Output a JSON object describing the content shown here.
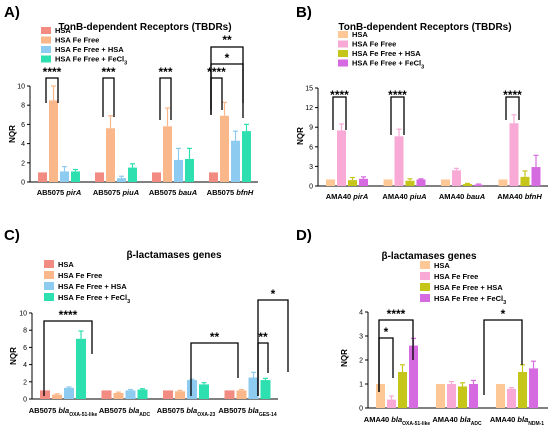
{
  "chart_data": [
    {
      "type": "bar",
      "panel": "A)",
      "title": "TonB-dependent Receptors (TBDRs)",
      "ylabel": "NQR",
      "ylim": [
        0,
        10
      ],
      "yticks": [
        "0",
        "2",
        "4",
        "6",
        "8",
        "10"
      ],
      "categories": [
        {
          "label": "AB5075 ",
          "gene": "pirA"
        },
        {
          "label": "AB5075 ",
          "gene": "piuA"
        },
        {
          "label": "AB5075 ",
          "gene": "bauA"
        },
        {
          "label": "AB5075 ",
          "gene": "bfnH"
        }
      ],
      "series": [
        {
          "name": "HSA",
          "color": "#f28b82",
          "values": [
            1,
            1,
            1,
            1
          ],
          "errors": [
            0,
            0,
            0,
            0
          ]
        },
        {
          "name": "HSA Fe Free",
          "color": "#f9b78a",
          "values": [
            8.5,
            5.6,
            5.8,
            6.9
          ],
          "errors": [
            1.5,
            1.3,
            1.9,
            1.4
          ]
        },
        {
          "name": "HSA Fe Free + HSA",
          "color": "#8ecbf0",
          "values": [
            1.1,
            0.4,
            2.3,
            4.3
          ],
          "errors": [
            0.5,
            0.2,
            1.2,
            1.0
          ]
        },
        {
          "name": "HSA Fe Free + FeCl3",
          "name_base": "HSA Fe Free + FeCl",
          "name_sub": "3",
          "color": "#2ee0b0",
          "values": [
            1.1,
            1.5,
            2.4,
            5.3
          ],
          "errors": [
            0.2,
            0.4,
            1.1,
            0.7
          ]
        }
      ],
      "significance": [
        "****",
        "***",
        "***",
        "****",
        "*",
        "**"
      ]
    },
    {
      "type": "bar",
      "panel": "B)",
      "title": "TonB-dependent Receptors (TBDRs)",
      "ylabel": "NQR",
      "ylim": [
        0,
        15
      ],
      "yticks": [
        "0",
        "3",
        "6",
        "9",
        "12",
        "15"
      ],
      "categories": [
        {
          "label": "AMA40 ",
          "gene": "pirA"
        },
        {
          "label": "AMA40 ",
          "gene": "piuA"
        },
        {
          "label": "AMA40 ",
          "gene": "bauA"
        },
        {
          "label": "AMA40 ",
          "gene": "bfnH"
        }
      ],
      "series": [
        {
          "name": "HSA",
          "color": "#fdc895",
          "values": [
            1,
            1,
            1,
            1
          ],
          "errors": [
            0,
            0,
            0,
            0
          ]
        },
        {
          "name": "HSA Fe Free",
          "color": "#f9a9d6",
          "values": [
            8.5,
            7.6,
            2.4,
            9.6
          ],
          "errors": [
            1.0,
            1.1,
            0.3,
            1.3
          ]
        },
        {
          "name": "HSA Fe Free + HSA",
          "color": "#c6c61a",
          "values": [
            0.9,
            0.8,
            0.3,
            1.4
          ],
          "errors": [
            0.4,
            0.3,
            0.1,
            0.9
          ]
        },
        {
          "name": "HSA Fe Free + FeCl3",
          "name_base": "HSA Fe Free + FeCl",
          "name_sub": "3",
          "color": "#d66ae0",
          "values": [
            1.1,
            1.0,
            0.2,
            2.9
          ],
          "errors": [
            0.3,
            0.1,
            0.1,
            1.8
          ]
        }
      ],
      "significance": [
        "****",
        "****",
        "****"
      ]
    },
    {
      "type": "bar",
      "panel": "C)",
      "title": "β-lactamases genes",
      "ylabel": "NQR",
      "ylim": [
        0,
        10
      ],
      "yticks": [
        "0",
        "2",
        "4",
        "6",
        "8",
        "10"
      ],
      "categories": [
        {
          "label": "AB5075 ",
          "gene": "bla",
          "sub": "OXA-51-like"
        },
        {
          "label": "AB5075 ",
          "gene": "bla",
          "sub": "ADC"
        },
        {
          "label": "AB5075 ",
          "gene": "bla",
          "sub": "OXA-23"
        },
        {
          "label": "AB5075 ",
          "gene": "bla",
          "sub": "GES-14"
        }
      ],
      "series": [
        {
          "name": "HSA",
          "color": "#f28b82",
          "values": [
            1,
            1,
            1,
            1
          ],
          "errors": [
            0,
            0,
            0,
            0
          ]
        },
        {
          "name": "HSA Fe Free",
          "color": "#f9b78a",
          "values": [
            0.5,
            0.7,
            0.9,
            1.0
          ],
          "errors": [
            0.1,
            0.1,
            0.1,
            0.1
          ]
        },
        {
          "name": "HSA Fe Free + HSA",
          "color": "#8ecbf0",
          "values": [
            1.3,
            1.0,
            2.2,
            2.5
          ],
          "errors": [
            0.1,
            0.1,
            0.1,
            0.6
          ]
        },
        {
          "name": "HSA Fe Free + FeCl3",
          "name_base": "HSA Fe Free + FeCl",
          "name_sub": "3",
          "color": "#2ee0b0",
          "values": [
            7.0,
            1.1,
            1.7,
            2.2
          ],
          "errors": [
            0.9,
            0.1,
            0.2,
            0.2
          ]
        }
      ],
      "significance": [
        "****",
        "**",
        "**",
        "*"
      ]
    },
    {
      "type": "bar",
      "panel": "D)",
      "title": "β-lactamases genes",
      "ylabel": "NQR",
      "ylim": [
        0,
        4
      ],
      "yticks": [
        "0",
        "1",
        "2",
        "3",
        "4"
      ],
      "categories": [
        {
          "label": "AMA40 ",
          "gene": "bla",
          "sub": "OXA-51-like"
        },
        {
          "label": "AMA40 ",
          "gene": "bla",
          "sub": "ADC"
        },
        {
          "label": "AMA40 ",
          "gene": "bla",
          "sub": "NDM-1"
        }
      ],
      "series": [
        {
          "name": "HSA",
          "color": "#fdc895",
          "values": [
            1,
            1,
            1
          ],
          "errors": [
            0,
            0,
            0
          ]
        },
        {
          "name": "HSA Fe Free",
          "color": "#f9a9d6",
          "values": [
            0.35,
            1.0,
            0.8
          ],
          "errors": [
            0.15,
            0.1,
            0.05
          ]
        },
        {
          "name": "HSA Fe Free + HSA",
          "color": "#c6c61a",
          "values": [
            1.5,
            0.9,
            1.5
          ],
          "errors": [
            0.3,
            0.15,
            0.3
          ]
        },
        {
          "name": "HSA Fe Free + FeCl3",
          "name_base": "HSA Fe Free + FeCl",
          "name_sub": "3",
          "color": "#d66ae0",
          "values": [
            2.6,
            1.0,
            1.65
          ],
          "errors": [
            0.3,
            0.15,
            0.3
          ]
        }
      ],
      "significance": [
        "*",
        "****",
        "*"
      ]
    }
  ]
}
